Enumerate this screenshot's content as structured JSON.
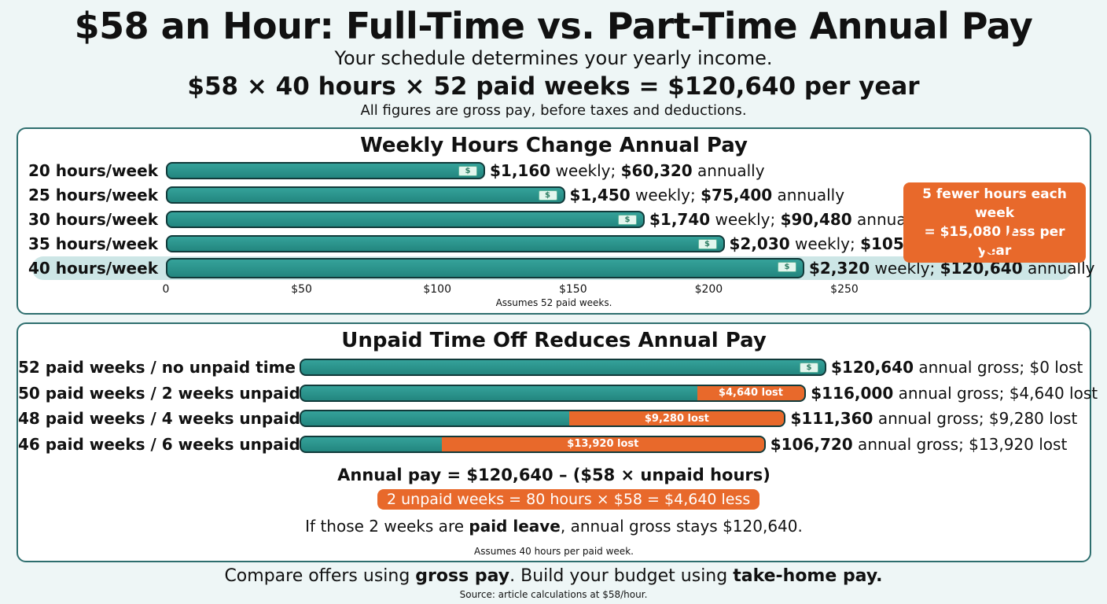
{
  "header": {
    "title": "$58 an Hour: Full-Time vs. Part-Time Annual Pay",
    "subtitle": "Your schedule determines your yearly income.",
    "formula": "$58 × 40 hours × 52 paid weeks = $120,640 per year",
    "note": "All figures are gross pay, before taxes and deductions."
  },
  "chart_data": [
    {
      "type": "bar",
      "title": "Weekly Hours Change Annual Pay",
      "categories": [
        "20 hours/week",
        "25 hours/week",
        "30 hours/week",
        "35 hours/week",
        "40 hours/week"
      ],
      "values": [
        1160,
        1450,
        1740,
        2030,
        2320
      ],
      "weekly_labels": [
        "$1,160",
        "$1,450",
        "$1,740",
        "$2,030",
        "$2,320"
      ],
      "annual_labels": [
        "$60,320",
        "$75,400",
        "$90,480",
        "$105,560",
        "$120,640"
      ],
      "weekly_word": "weekly;",
      "annual_word": "annually",
      "x_ticks": [
        "0",
        "$50",
        "$100",
        "$150",
        "$200",
        "$250"
      ],
      "footnote": "Assumes 52 paid weeks.",
      "highlight_index": 4,
      "callout": [
        "5 fewer hours each week",
        "= $15,080 less per year"
      ]
    },
    {
      "type": "bar",
      "title": "Unpaid Time Off Reduces Annual Pay",
      "categories": [
        "52 paid weeks / no unpaid time",
        "50 paid weeks / 2 weeks unpaid",
        "48 paid weeks / 4 weeks unpaid",
        "46 paid weeks / 6 weeks unpaid"
      ],
      "values": [
        120640,
        116000,
        111360,
        106720
      ],
      "lost_values": [
        0,
        4640,
        9280,
        13920
      ],
      "lost_labels": [
        "",
        "$4,640 lost",
        "$9,280 lost",
        "$13,920 lost"
      ],
      "annual_labels": [
        "$120,640",
        "$116,000",
        "$111,360",
        "$106,720"
      ],
      "summary_labels": [
        "annual gross; $0 lost",
        "annual gross; $4,640 lost",
        "annual gross; $9,280 lost",
        "annual gross; $13,920 lost"
      ],
      "formula": "Annual pay = $120,640 – ($58 × unpaid hours)",
      "example": "2 unpaid weeks = 80 hours × $58 = $4,640 less",
      "paid_leave_pre": "If those 2 weeks are ",
      "paid_leave_bold": "paid leave",
      "paid_leave_post": ", annual gross stays $120,640.",
      "footnote": "Assumes 40 hours per paid week."
    }
  ],
  "footer": {
    "pre": "Compare offers using ",
    "bold1": "gross pay",
    "mid": ". Build your budget using ",
    "bold2": "take-home pay.",
    "source": "Source: article calculations at $58/hour."
  },
  "colors": {
    "bar": "#2a948c",
    "lost": "#e8692b",
    "highlight": "#cde6e6",
    "border": "#2e6e6e"
  },
  "icons": {
    "bar_end": "money-icon",
    "callout_arrow": "arrow-icon"
  }
}
